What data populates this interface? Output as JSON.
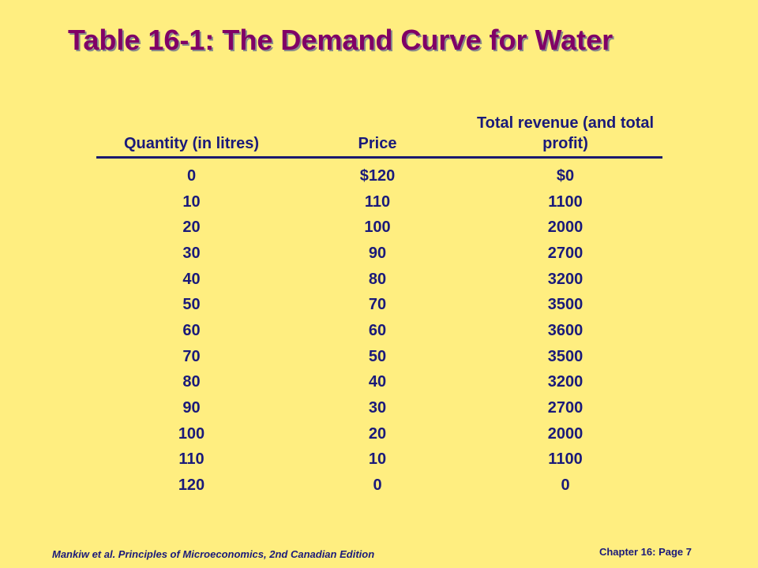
{
  "title": "Table 16-1: The Demand Curve for Water",
  "table": {
    "headers": [
      "Quantity (in litres)",
      "Price",
      "Total revenue (and total profit)"
    ],
    "rows": [
      [
        "0",
        "$120",
        "$0"
      ],
      [
        "10",
        "110",
        "1100"
      ],
      [
        "20",
        "100",
        "2000"
      ],
      [
        "30",
        "90",
        "2700"
      ],
      [
        "40",
        "80",
        "3200"
      ],
      [
        "50",
        "70",
        "3500"
      ],
      [
        "60",
        "60",
        "3600"
      ],
      [
        "70",
        "50",
        "3500"
      ],
      [
        "80",
        "40",
        "3200"
      ],
      [
        "90",
        "30",
        "2700"
      ],
      [
        "100",
        "20",
        "2000"
      ],
      [
        "110",
        "10",
        "1100"
      ],
      [
        "120",
        "0",
        "0"
      ]
    ]
  },
  "footer": {
    "citation": "Mankiw et al. Principles of Microeconomics, 2nd Canadian Edition",
    "page": "Chapter 16: Page 7"
  }
}
